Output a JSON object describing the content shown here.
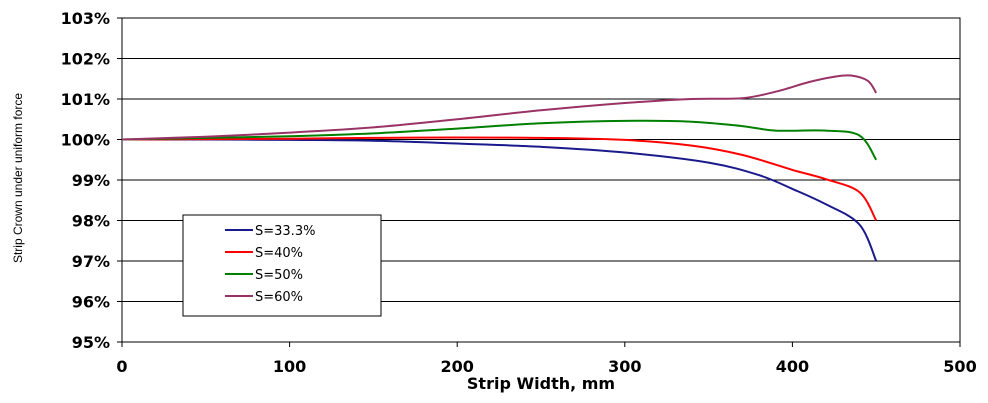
{
  "chart_data": {
    "type": "line",
    "title": "",
    "xlabel": "Strip Width, mm",
    "ylabel": "Strip Crown under uniform force",
    "xlim": [
      0,
      500
    ],
    "ylim": [
      95,
      103
    ],
    "x_ticks": [
      0,
      100,
      200,
      300,
      400,
      500
    ],
    "y_ticks": [
      95,
      96,
      97,
      98,
      99,
      100,
      101,
      102,
      103
    ],
    "y_tick_labels": [
      "95%",
      "96%",
      "97%",
      "98%",
      "99%",
      "100%",
      "101%",
      "102%",
      "103%"
    ],
    "grid": "horizontal",
    "legend_position": "bottom-left",
    "series": [
      {
        "name": "S=33.3%",
        "color": "#1a1a8c",
        "x": [
          0,
          50,
          100,
          150,
          200,
          250,
          300,
          350,
          380,
          400,
          420,
          440,
          450
        ],
        "y": [
          100,
          100,
          99.99,
          99.97,
          99.9,
          99.82,
          99.68,
          99.43,
          99.12,
          98.78,
          98.4,
          97.9,
          97.0
        ]
      },
      {
        "name": "S=40%",
        "color": "#ff0000",
        "x": [
          0,
          50,
          100,
          150,
          200,
          250,
          300,
          340,
          370,
          400,
          420,
          440,
          450
        ],
        "y": [
          100,
          100.01,
          100.02,
          100.04,
          100.05,
          100.04,
          99.99,
          99.85,
          99.62,
          99.25,
          99.02,
          98.7,
          98.0
        ]
      },
      {
        "name": "S=50%",
        "color": "#008000",
        "x": [
          0,
          50,
          100,
          150,
          200,
          250,
          300,
          340,
          370,
          390,
          420,
          440,
          450
        ],
        "y": [
          100,
          100.04,
          100.08,
          100.15,
          100.27,
          100.4,
          100.46,
          100.44,
          100.33,
          100.22,
          100.22,
          100.1,
          99.5
        ]
      },
      {
        "name": "S=60%",
        "color": "#993366",
        "x": [
          0,
          50,
          100,
          150,
          200,
          250,
          300,
          340,
          370,
          390,
          410,
          425,
          435,
          445,
          450
        ],
        "y": [
          100,
          100.07,
          100.17,
          100.3,
          100.5,
          100.72,
          100.9,
          101.0,
          101.02,
          101.18,
          101.42,
          101.55,
          101.58,
          101.45,
          101.15
        ]
      }
    ]
  }
}
